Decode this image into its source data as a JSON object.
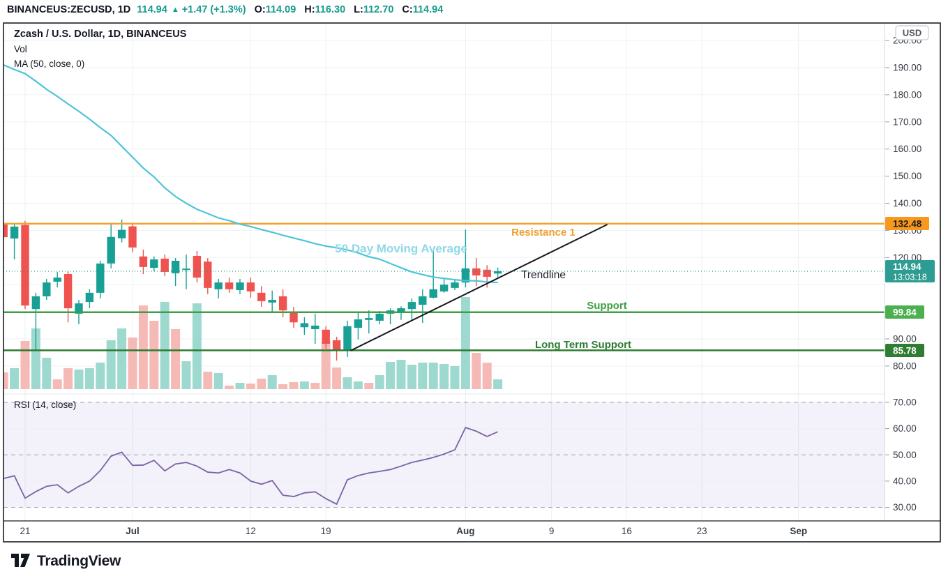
{
  "header": {
    "symbol": "BINANCEUS:ZECUSD, 1D",
    "last_price": "114.94",
    "direction_arrow": "▲",
    "change": "+1.47 (+1.3%)",
    "open_label": "O:",
    "open": "114.09",
    "high_label": "H:",
    "high": "116.30",
    "low_label": "L:",
    "low": "112.70",
    "close_label": "C:",
    "close": "114.94"
  },
  "legend": {
    "title": "Zcash / U.S. Dollar, 1D, BINANCEUS",
    "volume_indicator": "Vol",
    "ma_indicator": "MA (50, close, 0)",
    "rsi_indicator": "RSI (14, close)"
  },
  "annotations": {
    "resistance": "Resistance 1",
    "moving_average": "50 Day Moving Average",
    "trendline": "Trendline",
    "support": "Support",
    "long_term_support": "Long Term Support"
  },
  "price_scale": {
    "currency": "USD",
    "resistance_badge": "132.48",
    "last_badge": "114.94",
    "countdown": "13:03:18",
    "support_badge": "99.84",
    "long_term_badge": "85.78"
  },
  "footer": {
    "brand": "TradingView"
  },
  "colors": {
    "up": "#18a094",
    "down": "#ef5350",
    "volume_up": "#9ed9cf",
    "volume_down": "#f5b9b6",
    "ma_line": "#4cc5d8",
    "ma_label": "#8ed8e8",
    "rsi_line": "#7a63a6",
    "rsi_band": "#7b5fc0",
    "resistance": "#f2a32c",
    "resistance_badge_bg": "#f8991d",
    "support": "#3d9e43",
    "support_badge_bg": "#4caf50",
    "long_term_support": "#2b7c31",
    "long_term_badge_bg": "#2f7d33",
    "last_price_badge_bg": "#2d9c92",
    "current_price_line": "#2f938a",
    "trendline": "#16181e",
    "header_accent": "#179b8e",
    "text_dark": "#131722",
    "axis_text": "#363a45",
    "grid": "#eef0f3"
  },
  "chart_data": {
    "type": "candlestick",
    "title": "Zcash / U.S. Dollar, 1D, BINANCEUS",
    "symbol": "ZECUSD",
    "exchange": "BINANCEUS",
    "interval": "1D",
    "start_date": "Jun 19",
    "end_date": "Aug 4",
    "visible_price_range": [
      72,
      206
    ],
    "price_ticks": [
      200,
      190,
      180,
      170,
      160,
      150,
      140,
      130,
      120,
      90,
      80
    ],
    "price_gridlines": [
      200,
      190,
      180,
      170,
      160,
      150,
      140,
      130,
      120,
      110,
      100,
      90,
      80
    ],
    "rsi_ticks": [
      70,
      60,
      50,
      40,
      30
    ],
    "rsi_band": [
      30,
      70
    ],
    "time_ticks": [
      {
        "label": "21",
        "index": 2,
        "bold": false
      },
      {
        "label": "Jul",
        "index": 12,
        "bold": true
      },
      {
        "label": "12",
        "index": 23,
        "bold": false
      },
      {
        "label": "19",
        "index": 30,
        "bold": false
      },
      {
        "label": "Aug",
        "index": 43,
        "bold": true
      },
      {
        "label": "9",
        "index": 51,
        "bold": false
      },
      {
        "label": "16",
        "index": 58,
        "bold": false
      },
      {
        "label": "23",
        "index": 65,
        "bold": false
      },
      {
        "label": "Sep",
        "index": 74,
        "bold": true
      }
    ],
    "levels": {
      "resistance": 132.48,
      "support": 99.84,
      "long_term_support": 85.78,
      "last_price": 114.94
    },
    "trendline": {
      "from_index": 32.3,
      "from_price": 85.7,
      "to_index": 56.2,
      "to_price": 132.2
    },
    "ohlc": [
      [
        132.3,
        133.0,
        126.6,
        127.5
      ],
      [
        127.0,
        132.4,
        119.3,
        131.4
      ],
      [
        132.0,
        133.5,
        101.0,
        102.3
      ],
      [
        101.0,
        107.0,
        85.7,
        105.7
      ],
      [
        105.7,
        112.1,
        104.4,
        110.8
      ],
      [
        111.1,
        114.7,
        109.0,
        112.6
      ],
      [
        113.9,
        114.9,
        96.1,
        101.3
      ],
      [
        99.3,
        104.4,
        95.4,
        103.1
      ],
      [
        103.6,
        108.3,
        101.3,
        107.0
      ],
      [
        107.0,
        118.8,
        104.9,
        117.8
      ],
      [
        117.8,
        132.2,
        116.0,
        127.6
      ],
      [
        127.1,
        134.0,
        125.6,
        130.2
      ],
      [
        131.5,
        132.7,
        121.9,
        123.7
      ],
      [
        120.4,
        122.9,
        113.9,
        116.5
      ],
      [
        116.2,
        120.4,
        114.9,
        119.3
      ],
      [
        119.6,
        121.1,
        113.1,
        114.7
      ],
      [
        114.2,
        119.8,
        109.5,
        118.8
      ],
      [
        115.4,
        121.1,
        108.3,
        115.9
      ],
      [
        120.6,
        122.4,
        110.8,
        112.6
      ],
      [
        118.5,
        119.8,
        106.5,
        108.8
      ],
      [
        108.3,
        112.1,
        104.9,
        110.8
      ],
      [
        110.8,
        112.6,
        107.0,
        108.3
      ],
      [
        108.0,
        112.1,
        106.5,
        110.8
      ],
      [
        110.8,
        112.6,
        105.2,
        107.5
      ],
      [
        107.0,
        109.5,
        101.8,
        103.9
      ],
      [
        103.4,
        107.8,
        99.7,
        104.4
      ],
      [
        105.7,
        108.3,
        98.0,
        100.5
      ],
      [
        100.0,
        101.8,
        94.1,
        96.1
      ],
      [
        94.3,
        98.0,
        91.5,
        95.8
      ],
      [
        93.6,
        99.3,
        88.2,
        94.9
      ],
      [
        93.4,
        94.7,
        86.4,
        88.2
      ],
      [
        89.5,
        90.8,
        82.0,
        85.6
      ],
      [
        85.8,
        96.7,
        83.3,
        94.7
      ],
      [
        94.1,
        100.0,
        89.8,
        97.2
      ],
      [
        97.0,
        100.5,
        92.0,
        97.7
      ],
      [
        96.7,
        100.3,
        95.4,
        99.3
      ],
      [
        99.3,
        101.3,
        95.4,
        100.5
      ],
      [
        100.0,
        102.0,
        97.0,
        101.3
      ],
      [
        101.0,
        104.9,
        96.7,
        103.6
      ],
      [
        102.6,
        108.3,
        95.9,
        105.7
      ],
      [
        105.2,
        122.4,
        104.9,
        108.3
      ],
      [
        107.5,
        112.1,
        107.0,
        110.0
      ],
      [
        108.8,
        112.0,
        108.0,
        110.8
      ],
      [
        110.8,
        130.3,
        109.0,
        116.0
      ],
      [
        116.0,
        119.8,
        109.5,
        113.4
      ],
      [
        115.5,
        117.2,
        108.9,
        112.9
      ],
      [
        114.09,
        116.3,
        112.7,
        114.94
      ]
    ],
    "volume_relative": [
      [
        24,
        "d"
      ],
      [
        30,
        "u"
      ],
      [
        69,
        "d"
      ],
      [
        87,
        "u"
      ],
      [
        45,
        "u"
      ],
      [
        14,
        "d"
      ],
      [
        30,
        "d"
      ],
      [
        28,
        "u"
      ],
      [
        30,
        "u"
      ],
      [
        38,
        "u"
      ],
      [
        70,
        "u"
      ],
      [
        87,
        "u"
      ],
      [
        74,
        "d"
      ],
      [
        120,
        "d"
      ],
      [
        98,
        "d"
      ],
      [
        125,
        "u"
      ],
      [
        86,
        "d"
      ],
      [
        40,
        "u"
      ],
      [
        123,
        "u"
      ],
      [
        25,
        "d"
      ],
      [
        23,
        "u"
      ],
      [
        5,
        "d"
      ],
      [
        9,
        "u"
      ],
      [
        8,
        "d"
      ],
      [
        15,
        "d"
      ],
      [
        20,
        "u"
      ],
      [
        7,
        "d"
      ],
      [
        10,
        "d"
      ],
      [
        11,
        "u"
      ],
      [
        9,
        "d"
      ],
      [
        69,
        "d"
      ],
      [
        31,
        "d"
      ],
      [
        17,
        "u"
      ],
      [
        11,
        "u"
      ],
      [
        9,
        "d"
      ],
      [
        20,
        "u"
      ],
      [
        39,
        "u"
      ],
      [
        42,
        "u"
      ],
      [
        35,
        "u"
      ],
      [
        38,
        "u"
      ],
      [
        38,
        "u"
      ],
      [
        36,
        "u"
      ],
      [
        33,
        "u"
      ],
      [
        132,
        "u"
      ],
      [
        52,
        "d"
      ],
      [
        38,
        "d"
      ],
      [
        14,
        "u"
      ]
    ],
    "ma50": [
      191.0,
      189.3,
      187.8,
      185.0,
      182.0,
      179.4,
      176.6,
      173.9,
      171.0,
      167.9,
      165.0,
      161.0,
      157.0,
      153.0,
      149.7,
      145.7,
      142.5,
      140.0,
      137.8,
      136.2,
      134.6,
      133.6,
      132.3,
      131.4,
      130.3,
      129.3,
      128.2,
      127.2,
      126.2,
      125.1,
      124.2,
      123.6,
      122.8,
      121.7,
      120.3,
      119.4,
      117.8,
      116.2,
      114.7,
      113.7,
      112.8,
      112.3,
      111.8,
      111.5,
      111.4,
      111.0,
      110.8
    ],
    "rsi14": [
      41.0,
      42.0,
      33.5,
      36.0,
      38.0,
      38.6,
      35.5,
      38.0,
      40.0,
      44.0,
      49.5,
      51.0,
      46.0,
      46.1,
      47.9,
      43.9,
      46.5,
      47.1,
      45.7,
      43.4,
      43.1,
      44.4,
      43.1,
      40.0,
      38.8,
      40.2,
      34.6,
      34.1,
      35.5,
      35.9,
      33.3,
      31.2,
      40.5,
      42.1,
      43.1,
      43.7,
      44.4,
      45.7,
      47.1,
      48.0,
      49.0,
      50.3,
      51.9,
      60.4,
      59.0,
      57.0,
      58.8
    ]
  }
}
